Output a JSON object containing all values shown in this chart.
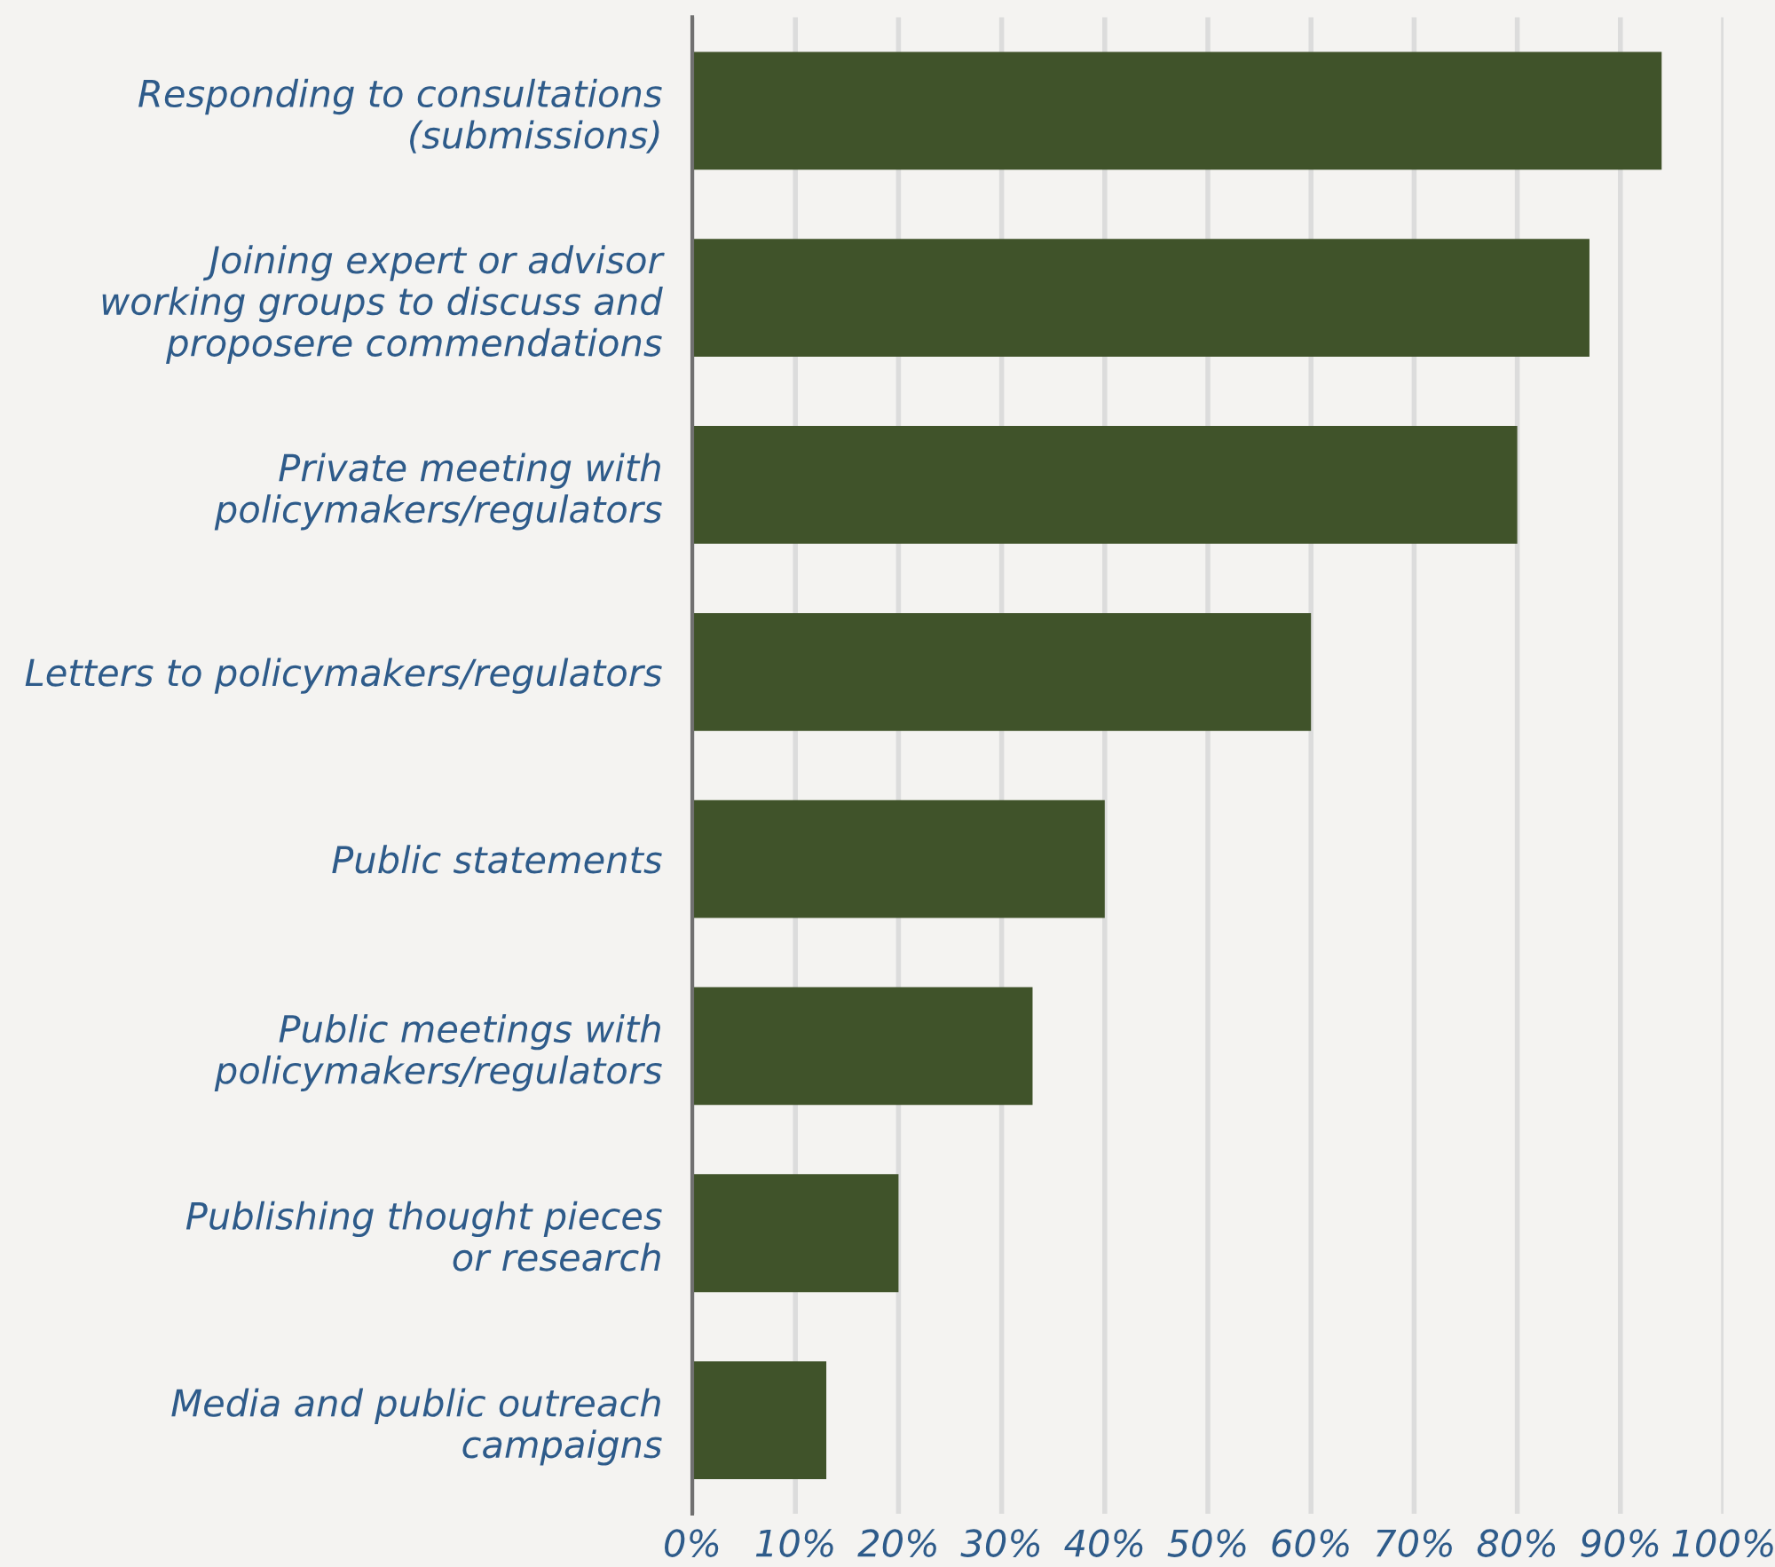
{
  "chart_data": {
    "type": "bar",
    "orientation": "horizontal",
    "categories": [
      "Responding to consultations\n(submissions)",
      "Joining expert or advisor\nworking groups to discuss and\nproposere commendations",
      "Private meeting with\npolicymakers/regulators",
      "Letters to policymakers/regulators",
      "Public statements",
      "Public meetings with\npolicymakers/regulators",
      "Publishing thought pieces\nor research",
      "Media and public outreach\ncampaigns"
    ],
    "values": [
      94,
      87,
      80,
      60,
      40,
      33,
      20,
      13
    ],
    "color": "#40532a",
    "xlim": [
      0,
      100
    ],
    "xticks": [
      {
        "value": 0,
        "label": "0%"
      },
      {
        "value": 10,
        "label": "10%"
      },
      {
        "value": 20,
        "label": "20%"
      },
      {
        "value": 30,
        "label": "30%"
      },
      {
        "value": 40,
        "label": "40%"
      },
      {
        "value": 50,
        "label": "50%"
      },
      {
        "value": 60,
        "label": "60%"
      },
      {
        "value": 70,
        "label": "70%"
      },
      {
        "value": 80,
        "label": "80%"
      },
      {
        "value": 90,
        "label": "90%"
      },
      {
        "value": 100,
        "label": "100%"
      }
    ],
    "grid": "x"
  }
}
